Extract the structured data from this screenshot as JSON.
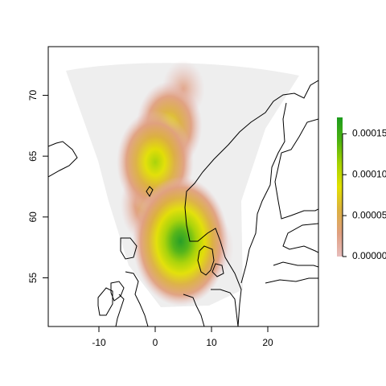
{
  "chart_data": {
    "type": "heatmap",
    "title": "",
    "xlabel": "",
    "ylabel": "",
    "xlim": [
      -19,
      29
    ],
    "ylim": [
      51,
      74
    ],
    "x_ticks": [
      -10,
      0,
      10,
      20
    ],
    "y_ticks": [
      55,
      60,
      65,
      70
    ],
    "tick_labels": {
      "x": [
        "-10",
        "0",
        "10",
        "20"
      ],
      "y": [
        "55",
        "60",
        "65",
        "70"
      ]
    },
    "legend": {
      "placement": "right",
      "range": [
        0,
        0.00017
      ],
      "ticks": [
        0,
        5e-05,
        0.0001,
        0.00015
      ],
      "tick_labels": [
        "0.00000",
        "0.00005",
        "0.00010",
        "0.00015"
      ],
      "palette": [
        "#e7bcbc",
        "#e0a080",
        "#dcb040",
        "#e2e000",
        "#a6d200",
        "#4cb210",
        "#1d9b1d"
      ]
    },
    "domain_fill": "#eeeeee",
    "density_peaks": [
      {
        "lon": 4.5,
        "lat": 58.0,
        "value": 0.00016
      },
      {
        "lon": 0.0,
        "lat": 64.5,
        "value": 0.00011
      },
      {
        "lon": 2.5,
        "lat": 67.5,
        "value": 8e-05
      },
      {
        "lon": -1.0,
        "lat": 61.0,
        "value": 6e-05
      },
      {
        "lon": 9.5,
        "lat": 57.5,
        "value": 4e-05
      },
      {
        "lon": 5.0,
        "lat": 70.5,
        "value": 2e-05
      }
    ],
    "coastlines_shown": true
  }
}
